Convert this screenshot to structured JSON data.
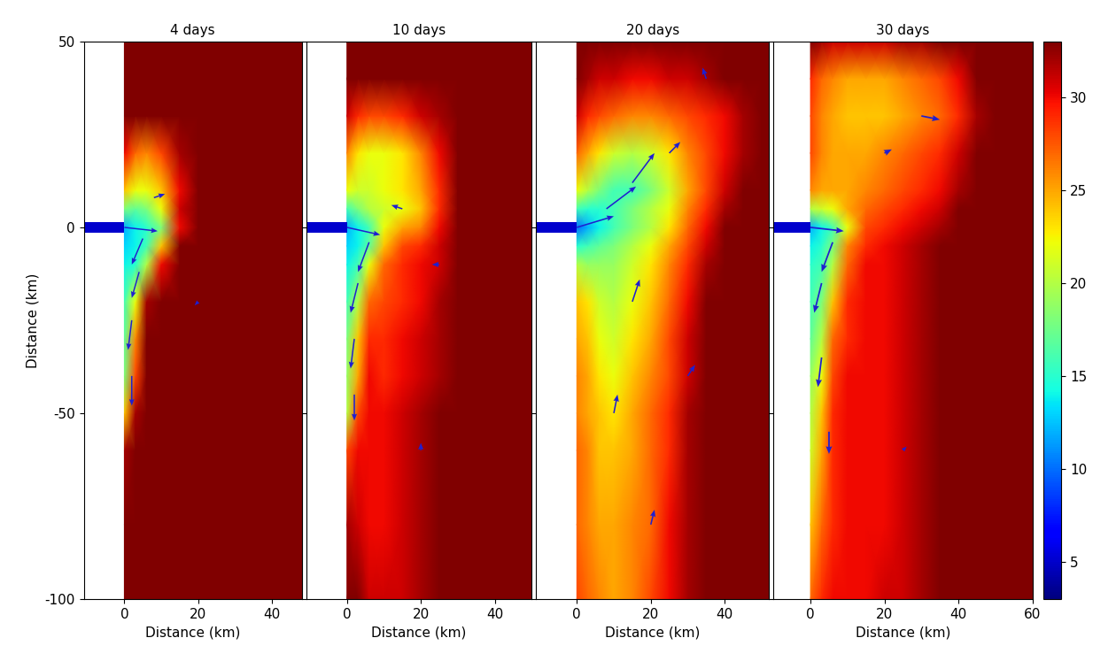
{
  "chart_data": [
    {
      "type": "heatmap",
      "title": "4 days",
      "xlabel": "Distance (km)",
      "ylabel": "Distance (km)",
      "xlim": [
        -11,
        48
      ],
      "ylim": [
        -100,
        50
      ],
      "xticks": [
        0,
        20,
        40
      ],
      "yticks": [
        -100,
        -50,
        0,
        50
      ],
      "tick_labels": true,
      "x": [
        0,
        3,
        6,
        10,
        15,
        20,
        25,
        30,
        35,
        40,
        45,
        50
      ],
      "y": [
        -100,
        -80,
        -60,
        -50,
        -40,
        -30,
        -20,
        -10,
        -5,
        0,
        5,
        10,
        20,
        30,
        40,
        50
      ],
      "values": [
        [
          33,
          33,
          33,
          33,
          33,
          33,
          33,
          33,
          33,
          33,
          33,
          33
        ],
        [
          33,
          33,
          33,
          33,
          33,
          33,
          33,
          33,
          33,
          33,
          33,
          33
        ],
        [
          32,
          33,
          33,
          33,
          33,
          33,
          33,
          33,
          33,
          33,
          33,
          33
        ],
        [
          24,
          32,
          33,
          33,
          33,
          33,
          33,
          33,
          33,
          33,
          33,
          33
        ],
        [
          18,
          28,
          33,
          33,
          33,
          33,
          33,
          33,
          33,
          33,
          33,
          33
        ],
        [
          17,
          26,
          33,
          33,
          33,
          33,
          33,
          33,
          33,
          33,
          33,
          33
        ],
        [
          16,
          22,
          32,
          33,
          33,
          33,
          33,
          33,
          33,
          33,
          33,
          33
        ],
        [
          14,
          15,
          20,
          30,
          33,
          33,
          33,
          33,
          33,
          33,
          33,
          33
        ],
        [
          13,
          14,
          16,
          24,
          33,
          33,
          33,
          33,
          33,
          33,
          33,
          33
        ],
        [
          12,
          14,
          15,
          18,
          30,
          33,
          33,
          33,
          33,
          33,
          33,
          33
        ],
        [
          18,
          17,
          18,
          22,
          31,
          33,
          33,
          33,
          33,
          33,
          33,
          33
        ],
        [
          24,
          22,
          22,
          24,
          30,
          33,
          33,
          33,
          33,
          33,
          33,
          33
        ],
        [
          30,
          27,
          26,
          28,
          32,
          33,
          33,
          33,
          33,
          33,
          33,
          33
        ],
        [
          33,
          33,
          33,
          33,
          33,
          33,
          33,
          33,
          33,
          33,
          33,
          33
        ],
        [
          33,
          33,
          33,
          33,
          33,
          33,
          33,
          33,
          33,
          33,
          33,
          33
        ],
        [
          33,
          33,
          33,
          33,
          33,
          33,
          33,
          33,
          33,
          33,
          33,
          33
        ]
      ],
      "channel": {
        "x": [
          -11,
          0
        ],
        "y": [
          -1.5,
          1.5
        ],
        "value": 5
      },
      "vectors": {
        "x": [
          0,
          5,
          4,
          2,
          2,
          8,
          20
        ],
        "y": [
          0,
          -3,
          -12,
          -25,
          -40,
          8,
          -20
        ],
        "u": [
          9,
          -3,
          -2,
          -1,
          0,
          3,
          -1
        ],
        "v": [
          -1,
          -7,
          -7,
          -8,
          -8,
          1,
          -1
        ]
      }
    },
    {
      "type": "heatmap",
      "title": "10 days",
      "xlabel": "Distance (km)",
      "xlim": [
        -11,
        50
      ],
      "ylim": [
        -100,
        50
      ],
      "xticks": [
        0,
        20,
        40
      ],
      "yticks": [
        -100,
        -50,
        0,
        50
      ],
      "tick_labels": "x",
      "x": [
        0,
        3,
        6,
        10,
        15,
        20,
        25,
        30,
        35,
        40,
        45,
        50
      ],
      "y": [
        -100,
        -80,
        -60,
        -50,
        -40,
        -30,
        -20,
        -10,
        -5,
        0,
        5,
        10,
        20,
        30,
        40,
        50
      ],
      "values": [
        [
          33,
          33,
          31,
          31,
          31,
          32,
          33,
          33,
          33,
          33,
          33,
          33
        ],
        [
          32,
          31,
          30,
          30,
          31,
          32,
          33,
          33,
          33,
          33,
          33,
          33
        ],
        [
          28,
          30,
          30,
          30,
          31,
          32,
          33,
          33,
          33,
          33,
          33,
          33
        ],
        [
          20,
          28,
          30,
          30,
          31,
          32,
          33,
          33,
          33,
          33,
          33,
          33
        ],
        [
          19,
          25,
          30,
          29,
          30,
          31,
          32,
          33,
          33,
          33,
          33,
          33
        ],
        [
          18,
          24,
          29,
          29,
          30,
          31,
          32,
          33,
          33,
          33,
          33,
          33
        ],
        [
          16,
          20,
          27,
          28,
          29,
          30,
          32,
          33,
          33,
          33,
          33,
          33
        ],
        [
          14,
          16,
          22,
          27,
          29,
          30,
          31,
          33,
          33,
          33,
          33,
          33
        ],
        [
          13,
          14,
          17,
          24,
          28,
          29,
          31,
          33,
          33,
          33,
          33,
          33
        ],
        [
          12,
          14,
          16,
          22,
          25,
          26,
          30,
          33,
          33,
          33,
          33,
          33
        ],
        [
          16,
          18,
          20,
          21,
          22,
          24,
          29,
          33,
          33,
          33,
          33,
          33
        ],
        [
          22,
          21,
          21,
          22,
          23,
          25,
          29,
          33,
          33,
          33,
          33,
          33
        ],
        [
          26,
          23,
          22,
          22,
          23,
          26,
          30,
          33,
          33,
          33,
          33,
          33
        ],
        [
          31,
          29,
          28,
          28,
          29,
          31,
          32,
          33,
          33,
          33,
          33,
          33
        ],
        [
          33,
          33,
          33,
          33,
          33,
          33,
          33,
          33,
          33,
          33,
          33,
          33
        ],
        [
          33,
          33,
          33,
          33,
          33,
          33,
          33,
          33,
          33,
          33,
          33,
          33
        ]
      ],
      "channel": {
        "x": [
          -11,
          0
        ],
        "y": [
          -1.5,
          1.5
        ],
        "value": 5
      },
      "vectors": {
        "x": [
          0,
          6,
          3,
          2,
          2,
          15,
          25,
          20
        ],
        "y": [
          0,
          -4,
          -15,
          -30,
          -45,
          5,
          -10,
          -60
        ],
        "u": [
          9,
          -3,
          -2,
          -1,
          0,
          -3,
          -2,
          0
        ],
        "v": [
          -2,
          -8,
          -8,
          -8,
          -7,
          1,
          0,
          2
        ]
      }
    },
    {
      "type": "heatmap",
      "title": "20 days",
      "xlabel": "Distance (km)",
      "xlim": [
        -11,
        52
      ],
      "ylim": [
        -100,
        50
      ],
      "xticks": [
        0,
        20,
        40
      ],
      "yticks": [
        -100,
        -50,
        0,
        50
      ],
      "tick_labels": "x",
      "x": [
        0,
        3,
        6,
        10,
        15,
        20,
        25,
        30,
        35,
        40,
        45,
        50,
        55
      ],
      "y": [
        -100,
        -80,
        -60,
        -50,
        -40,
        -30,
        -20,
        -10,
        -5,
        0,
        5,
        10,
        20,
        30,
        40,
        50
      ],
      "values": [
        [
          28,
          27,
          26,
          25,
          26,
          28,
          30,
          32,
          33,
          33,
          33,
          33,
          33
        ],
        [
          27,
          26,
          25,
          25,
          26,
          27,
          30,
          32,
          33,
          33,
          33,
          33,
          33
        ],
        [
          27,
          26,
          24,
          24,
          25,
          27,
          29,
          32,
          33,
          33,
          33,
          33,
          33
        ],
        [
          26,
          25,
          24,
          23,
          25,
          27,
          29,
          32,
          33,
          33,
          33,
          33,
          33
        ],
        [
          26,
          25,
          23,
          22,
          24,
          26,
          28,
          31,
          33,
          33,
          33,
          33,
          33
        ],
        [
          25,
          24,
          22,
          21,
          23,
          25,
          28,
          31,
          33,
          33,
          33,
          33,
          33
        ],
        [
          24,
          23,
          21,
          20,
          22,
          24,
          27,
          30,
          33,
          33,
          33,
          33,
          33
        ],
        [
          20,
          19,
          19,
          19,
          21,
          23,
          26,
          29,
          32,
          33,
          33,
          33,
          33
        ],
        [
          15,
          16,
          17,
          18,
          20,
          22,
          25,
          28,
          31,
          33,
          33,
          33,
          33
        ],
        [
          10,
          12,
          14,
          16,
          18,
          20,
          23,
          27,
          30,
          33,
          33,
          33,
          33
        ],
        [
          16,
          15,
          15,
          16,
          18,
          20,
          22,
          26,
          29,
          32,
          33,
          33,
          33
        ],
        [
          22,
          20,
          18,
          16,
          16,
          18,
          21,
          25,
          28,
          31,
          33,
          33,
          33
        ],
        [
          27,
          25,
          23,
          21,
          20,
          21,
          23,
          26,
          28,
          30,
          32,
          33,
          33
        ],
        [
          31,
          29,
          28,
          27,
          26,
          26,
          27,
          28,
          29,
          30,
          32,
          33,
          33
        ],
        [
          33,
          32,
          31,
          31,
          30,
          30,
          31,
          31,
          32,
          33,
          33,
          33,
          33
        ],
        [
          33,
          33,
          33,
          33,
          33,
          33,
          33,
          33,
          33,
          33,
          33,
          33,
          33
        ]
      ],
      "channel": {
        "x": [
          -11,
          0
        ],
        "y": [
          -1.5,
          1.5
        ],
        "value": 5
      },
      "vectors": {
        "x": [
          0,
          8,
          15,
          25,
          15,
          10,
          20,
          30,
          35
        ],
        "y": [
          0,
          5,
          12,
          20,
          -20,
          -50,
          -80,
          -40,
          40
        ],
        "u": [
          10,
          8,
          6,
          3,
          2,
          1,
          1,
          2,
          -1
        ],
        "v": [
          3,
          6,
          8,
          3,
          6,
          5,
          4,
          3,
          3
        ]
      }
    },
    {
      "type": "heatmap",
      "title": "30 days",
      "xlabel": "Distance (km)",
      "xlim": [
        -10,
        60
      ],
      "ylim": [
        -100,
        50
      ],
      "xticks": [
        0,
        20,
        40,
        60
      ],
      "yticks": [
        -100,
        -50,
        0,
        50
      ],
      "tick_labels": "x",
      "x": [
        0,
        3,
        6,
        10,
        15,
        20,
        25,
        30,
        35,
        40,
        45,
        50,
        55,
        60
      ],
      "y": [
        -100,
        -80,
        -60,
        -50,
        -40,
        -30,
        -20,
        -10,
        -5,
        0,
        5,
        10,
        20,
        30,
        40,
        50
      ],
      "values": [
        [
          27,
          29,
          30,
          30,
          30,
          31,
          31,
          32,
          33,
          33,
          33,
          33,
          33,
          33
        ],
        [
          24,
          27,
          29,
          30,
          30,
          30,
          31,
          32,
          33,
          33,
          33,
          33,
          33,
          33
        ],
        [
          21,
          25,
          29,
          30,
          30,
          30,
          31,
          32,
          33,
          33,
          33,
          33,
          33,
          33
        ],
        [
          20,
          24,
          29,
          30,
          30,
          30,
          31,
          32,
          33,
          33,
          33,
          33,
          33,
          33
        ],
        [
          19,
          22,
          28,
          30,
          30,
          30,
          31,
          32,
          33,
          33,
          33,
          33,
          33,
          33
        ],
        [
          17,
          20,
          27,
          29,
          30,
          30,
          31,
          32,
          33,
          33,
          33,
          33,
          33,
          33
        ],
        [
          16,
          18,
          24,
          29,
          30,
          30,
          31,
          32,
          33,
          33,
          33,
          33,
          33,
          33
        ],
        [
          15,
          16,
          20,
          27,
          30,
          30,
          31,
          32,
          33,
          33,
          33,
          33,
          33,
          33
        ],
        [
          14,
          15,
          18,
          26,
          29,
          30,
          31,
          32,
          33,
          33,
          33,
          33,
          33,
          33
        ],
        [
          12,
          14,
          16,
          22,
          28,
          29,
          30,
          31,
          32,
          33,
          33,
          33,
          33,
          33
        ],
        [
          20,
          21,
          22,
          25,
          27,
          28,
          29,
          30,
          31,
          33,
          33,
          33,
          33,
          33
        ],
        [
          26,
          25,
          25,
          25,
          26,
          27,
          28,
          29,
          30,
          32,
          33,
          33,
          33,
          33
        ],
        [
          28,
          26,
          25,
          25,
          25,
          26,
          27,
          28,
          29,
          31,
          33,
          33,
          33,
          33
        ],
        [
          28,
          26,
          25,
          24,
          24,
          24,
          25,
          26,
          27,
          29,
          32,
          33,
          33,
          33
        ],
        [
          29,
          27,
          26,
          25,
          25,
          25,
          26,
          27,
          28,
          30,
          33,
          33,
          33,
          33
        ],
        [
          33,
          32,
          31,
          31,
          31,
          31,
          32,
          32,
          33,
          33,
          33,
          33,
          33,
          33
        ]
      ],
      "channel": {
        "x": [
          -11,
          0
        ],
        "y": [
          -1.5,
          1.5
        ],
        "value": 5
      },
      "vectors": {
        "x": [
          0,
          6,
          3,
          3,
          5,
          20,
          30,
          25
        ],
        "y": [
          0,
          -4,
          -15,
          -35,
          -55,
          20,
          30,
          -60
        ],
        "u": [
          9,
          -3,
          -2,
          -1,
          0,
          2,
          5,
          1
        ],
        "v": [
          -1,
          -8,
          -8,
          -8,
          -6,
          1,
          -1,
          1
        ]
      }
    }
  ],
  "colorbar": {
    "range": [
      3,
      33
    ],
    "ticks": [
      5,
      10,
      15,
      20,
      25,
      30
    ]
  }
}
